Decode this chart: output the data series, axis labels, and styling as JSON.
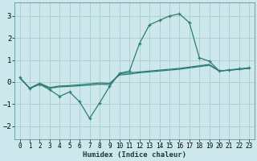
{
  "xlabel": "Humidex (Indice chaleur)",
  "ylabel": "",
  "bg_color": "#cce8ec",
  "grid_color": "#aacccc",
  "line_color": "#2e7d72",
  "xlim": [
    -0.5,
    23.5
  ],
  "ylim": [
    -2.6,
    3.6
  ],
  "xticks": [
    0,
    1,
    2,
    3,
    4,
    5,
    6,
    7,
    8,
    9,
    10,
    11,
    12,
    13,
    14,
    15,
    16,
    17,
    18,
    19,
    20,
    21,
    22,
    23
  ],
  "yticks": [
    -2,
    -1,
    0,
    1,
    2,
    3
  ],
  "series1_x": [
    0,
    1,
    2,
    3,
    4,
    5,
    6,
    7,
    8,
    9,
    10,
    11,
    12,
    13,
    14,
    15,
    16,
    17,
    18,
    19,
    20,
    21,
    22,
    23
  ],
  "series1_y": [
    0.2,
    -0.3,
    -0.1,
    -0.35,
    -0.65,
    -0.45,
    -0.9,
    -1.65,
    -0.95,
    -0.2,
    0.4,
    0.5,
    1.75,
    2.6,
    2.8,
    3.0,
    3.1,
    2.7,
    1.1,
    0.95,
    0.5,
    0.55,
    0.6,
    0.65
  ],
  "series2_x": [
    0,
    1,
    2,
    3,
    4,
    5,
    6,
    7,
    8,
    9,
    10,
    11,
    12,
    13,
    14,
    15,
    16,
    17,
    18,
    19,
    20,
    21,
    22,
    23
  ],
  "series2_y": [
    0.2,
    -0.28,
    -0.1,
    -0.28,
    -0.22,
    -0.2,
    -0.17,
    -0.14,
    -0.1,
    -0.12,
    0.38,
    0.42,
    0.46,
    0.5,
    0.54,
    0.58,
    0.62,
    0.68,
    0.74,
    0.8,
    0.5,
    0.54,
    0.58,
    0.62
  ],
  "series3_x": [
    0,
    1,
    2,
    3,
    4,
    5,
    6,
    7,
    8,
    9,
    10,
    11,
    12,
    13,
    14,
    15,
    16,
    17,
    18,
    19,
    20,
    21,
    22,
    23
  ],
  "series3_y": [
    0.2,
    -0.28,
    -0.05,
    -0.25,
    -0.18,
    -0.16,
    -0.12,
    -0.08,
    -0.04,
    -0.06,
    0.32,
    0.36,
    0.42,
    0.46,
    0.5,
    0.54,
    0.58,
    0.64,
    0.7,
    0.76,
    0.5,
    0.54,
    0.58,
    0.62
  ]
}
